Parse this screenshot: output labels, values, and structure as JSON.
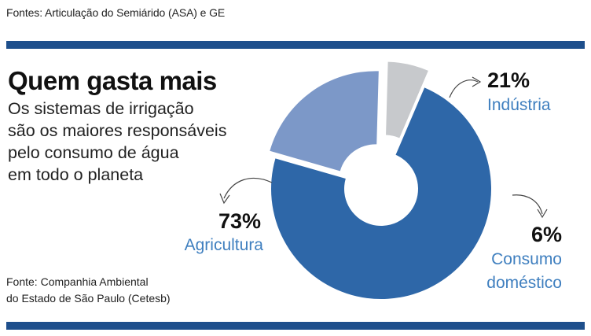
{
  "header": {
    "sources": "Fontes: Articulação do Semiárido (ASA) e GE",
    "headline": "Quem gasta mais",
    "subtitle_lines": [
      "Os sistemas de irrigação",
      "são os maiores responsáveis",
      "pelo consumo de água",
      "em todo o planeta"
    ]
  },
  "footer": {
    "source_lines": [
      "Fonte: Companhia Ambiental",
      "do Estado de São Paulo (Cetesb)"
    ]
  },
  "colors": {
    "brand_bar": "#1e4f8c",
    "label_blue": "#3f7fbf",
    "arrow": "#444444"
  },
  "chart_data": {
    "type": "pie",
    "style": "donut",
    "title": "",
    "slices": [
      {
        "label": "Agricultura",
        "percent_label": "73%",
        "value": 73,
        "color": "#2e67a8"
      },
      {
        "label": "Indústria",
        "percent_label": "21%",
        "value": 21,
        "color": "#7c98c8"
      },
      {
        "label_lines": [
          "Consumo",
          "doméstico"
        ],
        "percent_label": "6%",
        "value": 6,
        "color": "#c7c9cc"
      }
    ]
  }
}
